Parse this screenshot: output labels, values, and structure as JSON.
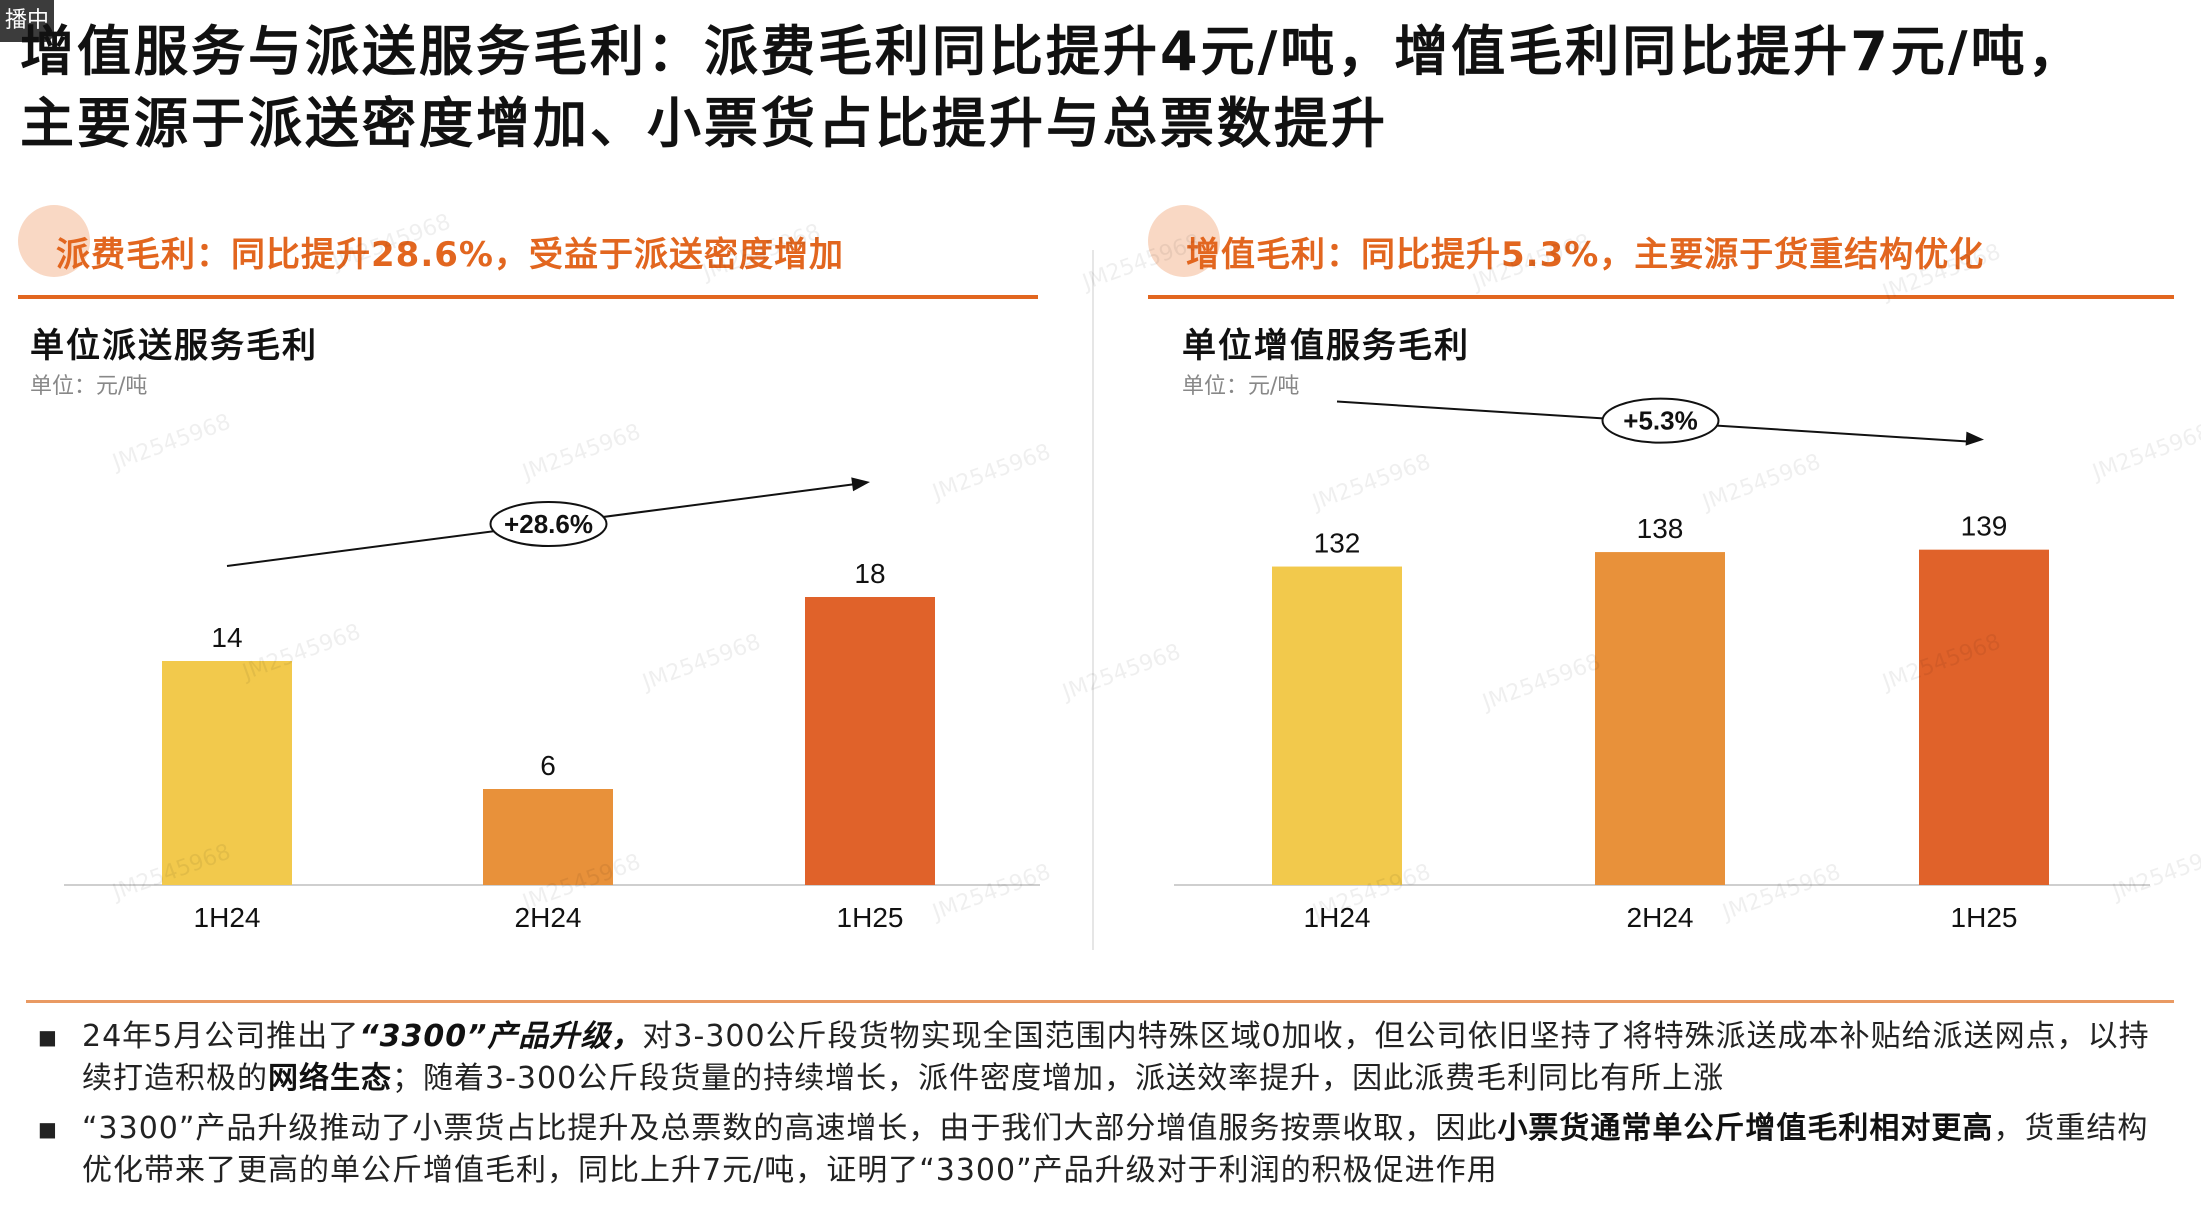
{
  "corner_tag": "播中",
  "title": {
    "line1": "增值服务与派送服务毛利：派费毛利同比提升4元/吨，增值毛利同比提升7元/吨，",
    "line2": "主要源于派送密度增加、小票货占比提升与总票数提升"
  },
  "left_section": {
    "header": "派费毛利：同比提升28.6%，受益于派送密度增加",
    "chart_title": "单位派送服务毛利",
    "unit": "单位：元/吨"
  },
  "right_section": {
    "header": "增值毛利：同比提升5.3%，主要源于货重结构优化",
    "chart_title": "单位增值服务毛利",
    "unit": "单位：元/吨"
  },
  "chart_data": [
    {
      "type": "bar",
      "title": "单位派送服务毛利",
      "unit": "元/吨",
      "categories": [
        "1H24",
        "2H24",
        "1H25"
      ],
      "values": [
        14,
        6,
        18
      ],
      "colors": [
        "#f2c94c",
        "#e8913a",
        "#e0622a"
      ],
      "ylim": [
        0,
        20
      ],
      "annotation": "+28.6%"
    },
    {
      "type": "bar",
      "title": "单位增值服务毛利",
      "unit": "元/吨",
      "categories": [
        "1H24",
        "2H24",
        "1H25"
      ],
      "values": [
        132,
        138,
        139
      ],
      "colors": [
        "#f2c94c",
        "#e8913a",
        "#e0622a"
      ],
      "ylim": [
        0,
        160
      ],
      "annotation": "+5.3%"
    }
  ],
  "bullets": [
    {
      "parts": [
        {
          "t": "24年5月公司推出了",
          "s": "n"
        },
        {
          "t": "“3300”产品升级，",
          "s": "em"
        },
        {
          "t": "对3-300公斤段货物实现全国范围内特殊区域0加收，但公司依旧坚持了将特殊派送成本补贴给派送网点，以持续打造积极的",
          "s": "n"
        },
        {
          "t": "网络生态",
          "s": "b"
        },
        {
          "t": "；随着3-300公斤段货量的持续增长，派件密度增加，派送效率提升，因此派费毛利同比有所上涨",
          "s": "n"
        }
      ]
    },
    {
      "parts": [
        {
          "t": "“3300”产品升级推动了小票货占比提升及总票数的高速增长，由于我们大部分增值服务按票收取，因此",
          "s": "n"
        },
        {
          "t": "小票货通常单公斤增值毛利相对更高",
          "s": "b"
        },
        {
          "t": "，货重结构优化带来了更高的单公斤增值毛利，同比上升7元/吨，证明了“3300”产品升级对于利润的积极促进作用",
          "s": "n"
        }
      ]
    }
  ],
  "watermark": "JM2545968"
}
